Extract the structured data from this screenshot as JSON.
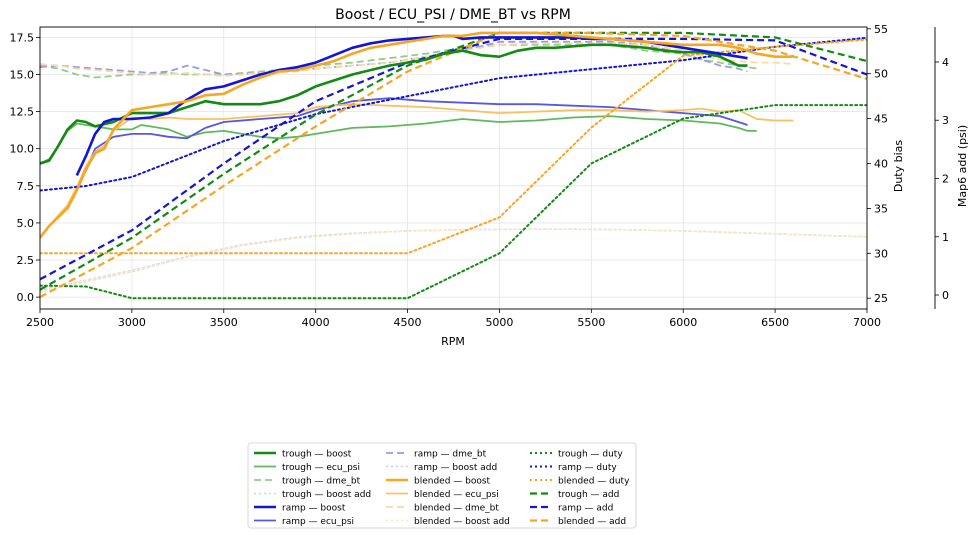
{
  "chart_data": {
    "type": "line",
    "title": "Boost / ECU_PSI / DME_BT vs RPM",
    "xlabel": "RPM",
    "ylabel_left": "",
    "ylabel_right1": "Duty bias",
    "ylabel_right2": "Map6 add (psi)",
    "xlim": [
      2500,
      7000
    ],
    "ylim_left": [
      -0.8,
      18.2
    ],
    "ylim_right1": [
      23.8,
      55.2
    ],
    "ylim_right2": [
      -0.24,
      4.6
    ],
    "xticks": [
      "2500",
      "3000",
      "3500",
      "4000",
      "4500",
      "5000",
      "5500",
      "6000",
      "6500",
      "7000"
    ],
    "yticks_left": [
      "0.0",
      "2.5",
      "5.0",
      "7.5",
      "10.0",
      "12.5",
      "15.0",
      "17.5"
    ],
    "yticks_right1": [
      "25",
      "30",
      "35",
      "40",
      "45",
      "50",
      "55"
    ],
    "yticks_right2": [
      "0",
      "1",
      "2",
      "3",
      "4"
    ],
    "grid": true,
    "legend_position": "bottom-center",
    "colors": {
      "trough": "#138a13",
      "ramp": "#1414d6",
      "blended": "#f5a623"
    },
    "series": [
      {
        "name": "trough — boost",
        "axis": "left",
        "color": "#138a13",
        "dash": "solid",
        "width": 2.6,
        "alpha": 1,
        "x": [
          2500,
          2550,
          2600,
          2650,
          2700,
          2750,
          2800,
          2900,
          3000,
          3100,
          3200,
          3300,
          3400,
          3500,
          3600,
          3700,
          3800,
          3900,
          4000,
          4200,
          4400,
          4500,
          4600,
          4700,
          4800,
          4900,
          5000,
          5100,
          5200,
          5300,
          5400,
          5500,
          5600,
          5700,
          5800,
          5900,
          6000,
          6100,
          6200,
          6300,
          6350
        ],
        "y": [
          9.0,
          9.2,
          10.2,
          11.3,
          11.9,
          11.8,
          11.5,
          11.8,
          12.4,
          12.4,
          12.4,
          12.8,
          13.2,
          13.0,
          13.0,
          13.0,
          13.2,
          13.6,
          14.2,
          15.0,
          15.6,
          15.8,
          16.0,
          16.4,
          16.6,
          16.3,
          16.2,
          16.6,
          16.8,
          16.8,
          16.9,
          17.0,
          17.0,
          16.9,
          16.8,
          16.6,
          16.5,
          16.5,
          16.2,
          15.6,
          15.6
        ]
      },
      {
        "name": "trough — ecu_psi",
        "axis": "left",
        "color": "#5fb85f",
        "dash": "solid",
        "width": 1.8,
        "alpha": 1,
        "x": [
          2500,
          2550,
          2600,
          2650,
          2700,
          2800,
          2900,
          3000,
          3050,
          3100,
          3200,
          3300,
          3400,
          3500,
          3600,
          3700,
          3800,
          3900,
          4000,
          4200,
          4400,
          4600,
          4800,
          5000,
          5200,
          5400,
          5600,
          5800,
          6000,
          6200,
          6300,
          6350,
          6400
        ],
        "y": [
          9.0,
          9.3,
          10.2,
          11.2,
          11.7,
          11.5,
          11.3,
          11.3,
          11.6,
          11.5,
          11.3,
          10.8,
          11.1,
          11.2,
          11.0,
          10.8,
          10.7,
          10.8,
          11.0,
          11.4,
          11.5,
          11.7,
          12.0,
          11.8,
          11.9,
          12.1,
          12.2,
          12.0,
          11.9,
          11.7,
          11.4,
          11.2,
          11.2
        ]
      },
      {
        "name": "trough — dme_bt",
        "axis": "left",
        "color": "#8fcc8f",
        "dash": "dashed",
        "width": 1.8,
        "alpha": 1,
        "x": [
          2500,
          2600,
          2700,
          2800,
          2900,
          3000,
          3100,
          3200,
          3300,
          3400,
          3500,
          3700,
          3900,
          4000,
          4200,
          4400,
          4600,
          4800,
          5000,
          5200,
          5400,
          5600,
          5800,
          6000,
          6100,
          6200,
          6300,
          6400
        ],
        "y": [
          15.6,
          15.4,
          15.0,
          14.8,
          14.9,
          15.0,
          15.0,
          15.1,
          15.0,
          15.0,
          15.0,
          15.2,
          15.4,
          15.6,
          15.8,
          16.1,
          16.4,
          16.8,
          17.0,
          17.0,
          17.0,
          17.0,
          16.6,
          16.4,
          16.0,
          15.8,
          15.6,
          15.4
        ]
      },
      {
        "name": "trough — boost add",
        "axis": "right2",
        "color": "#bfe3bf",
        "dash": "dotted",
        "width": 1.6,
        "alpha": 1,
        "x": [
          2500,
          2700,
          3000,
          3300,
          3600,
          3900,
          4200,
          4500,
          4800,
          5100,
          5400,
          5700,
          6000,
          6300,
          6600,
          7000
        ],
        "y": [
          0.05,
          0.2,
          0.4,
          0.65,
          0.85,
          0.98,
          1.05,
          1.1,
          1.12,
          1.13,
          1.13,
          1.12,
          1.1,
          1.07,
          1.04,
          1.0
        ]
      },
      {
        "name": "ramp — boost",
        "axis": "left",
        "color": "#1414d6",
        "dash": "solid",
        "width": 2.6,
        "alpha": 1,
        "x": [
          2700,
          2750,
          2800,
          2850,
          2900,
          3000,
          3100,
          3200,
          3300,
          3400,
          3500,
          3600,
          3700,
          3800,
          3900,
          4000,
          4100,
          4200,
          4300,
          4400,
          4500,
          4600,
          4700,
          4750,
          4800,
          4900,
          5000,
          5100,
          5200,
          5400,
          5500,
          5600,
          5800,
          6000,
          6200,
          6300,
          6350
        ],
        "y": [
          8.2,
          9.5,
          11.0,
          11.8,
          12.0,
          12.0,
          12.1,
          12.4,
          13.3,
          14.0,
          14.2,
          14.6,
          15.0,
          15.3,
          15.5,
          15.8,
          16.3,
          16.8,
          17.1,
          17.3,
          17.4,
          17.5,
          17.6,
          17.6,
          17.4,
          17.5,
          17.5,
          17.5,
          17.5,
          17.5,
          17.4,
          17.4,
          17.2,
          16.8,
          16.4,
          16.2,
          16.1
        ]
      },
      {
        "name": "ramp — ecu_psi",
        "axis": "left",
        "color": "#5757e0",
        "dash": "solid",
        "width": 1.8,
        "alpha": 1,
        "x": [
          2750,
          2800,
          2900,
          3000,
          3100,
          3200,
          3300,
          3400,
          3500,
          3700,
          3900,
          4000,
          4200,
          4400,
          4600,
          4800,
          5000,
          5200,
          5400,
          5600,
          5800,
          6000,
          6200,
          6300,
          6350
        ],
        "y": [
          8.5,
          10.0,
          10.8,
          11.0,
          11.0,
          10.8,
          10.7,
          11.4,
          11.8,
          12.0,
          12.2,
          12.6,
          13.2,
          13.4,
          13.2,
          13.1,
          13.0,
          13.0,
          12.9,
          12.8,
          12.6,
          12.4,
          12.2,
          11.8,
          11.6
        ]
      },
      {
        "name": "ramp — dme_bt",
        "axis": "left",
        "color": "#9a9aea",
        "dash": "dashed",
        "width": 1.8,
        "alpha": 1,
        "x": [
          2500,
          2600,
          2700,
          2800,
          2900,
          3000,
          3100,
          3200,
          3300,
          3400,
          3500,
          3700,
          3900,
          4000,
          4200,
          4400,
          4600,
          4800,
          5000,
          5200,
          5400,
          5600,
          5800,
          6000,
          6100,
          6200,
          6300,
          6350
        ],
        "y": [
          15.5,
          15.6,
          15.5,
          15.4,
          15.3,
          15.2,
          15.1,
          15.2,
          15.6,
          15.3,
          15.0,
          15.1,
          15.3,
          15.4,
          15.6,
          15.8,
          16.2,
          16.6,
          17.2,
          17.2,
          17.2,
          17.2,
          17.0,
          16.4,
          16.0,
          15.6,
          15.4,
          15.2
        ]
      },
      {
        "name": "ramp — boost add",
        "axis": "right2",
        "color": "#c9c9f2",
        "dash": "dotted",
        "width": 1.6,
        "alpha": 1,
        "x": [
          2500,
          2700,
          3000,
          3300,
          3600,
          3900,
          4200,
          4500,
          4800,
          5100,
          5400,
          5700,
          6000,
          6300,
          6600,
          7000
        ],
        "y": [
          0.08,
          0.22,
          0.42,
          0.66,
          0.86,
          0.99,
          1.06,
          1.1,
          1.12,
          1.13,
          1.13,
          1.12,
          1.1,
          1.07,
          1.04,
          1.0
        ]
      },
      {
        "name": "blended — boost",
        "axis": "left",
        "color": "#f5a623",
        "dash": "solid",
        "width": 2.6,
        "alpha": 1,
        "x": [
          2500,
          2550,
          2600,
          2650,
          2700,
          2750,
          2800,
          2850,
          2900,
          3000,
          3100,
          3200,
          3300,
          3400,
          3500,
          3600,
          3700,
          3800,
          3900,
          4000,
          4100,
          4200,
          4300,
          4400,
          4500,
          4600,
          4700,
          4800,
          4900,
          5000,
          5200,
          5400,
          5600,
          5800,
          6000,
          6200,
          6300,
          6400,
          6500,
          6600
        ],
        "y": [
          4.0,
          4.8,
          5.4,
          6.0,
          7.2,
          8.6,
          9.7,
          10.0,
          11.3,
          12.6,
          12.8,
          13.0,
          13.2,
          13.6,
          13.7,
          14.3,
          14.8,
          15.2,
          15.3,
          15.6,
          15.9,
          16.4,
          16.8,
          17.0,
          17.2,
          17.4,
          17.6,
          17.6,
          17.8,
          17.8,
          17.8,
          17.6,
          17.4,
          17.2,
          17.0,
          17.0,
          16.8,
          16.4,
          16.2,
          16.2
        ]
      },
      {
        "name": "blended — ecu_psi",
        "axis": "left",
        "color": "#f8c060",
        "dash": "solid",
        "width": 1.8,
        "alpha": 1,
        "x": [
          2500,
          2550,
          2600,
          2650,
          2700,
          2750,
          2800,
          2850,
          2900,
          3000,
          3100,
          3200,
          3300,
          3400,
          3500,
          3700,
          3900,
          4000,
          4200,
          4400,
          4600,
          4800,
          5000,
          5200,
          5400,
          5600,
          5800,
          6000,
          6100,
          6200,
          6300,
          6400,
          6500,
          6600
        ],
        "y": [
          4.0,
          4.8,
          5.5,
          6.2,
          7.4,
          8.8,
          9.8,
          10.2,
          11.2,
          12.1,
          12.0,
          12.1,
          12.0,
          12.0,
          12.0,
          12.2,
          12.4,
          12.8,
          13.0,
          12.9,
          12.8,
          12.6,
          12.4,
          12.5,
          12.6,
          12.6,
          12.5,
          12.6,
          12.7,
          12.5,
          12.6,
          12.0,
          11.9,
          11.9
        ]
      },
      {
        "name": "blended — dme_bt",
        "axis": "left",
        "color": "#fbd9a0",
        "dash": "dashed",
        "width": 1.8,
        "alpha": 1,
        "x": [
          2500,
          2600,
          2700,
          2800,
          2900,
          3000,
          3100,
          3200,
          3300,
          3400,
          3500,
          3700,
          3900,
          4000,
          4200,
          4400,
          4600,
          4800,
          5000,
          5200,
          5400,
          5600,
          5800,
          6000,
          6200,
          6300,
          6400,
          6500,
          6600
        ],
        "y": [
          15.7,
          15.6,
          15.4,
          15.3,
          15.2,
          15.1,
          15.0,
          15.0,
          15.1,
          15.0,
          14.9,
          15.1,
          15.2,
          15.4,
          15.6,
          15.8,
          16.2,
          16.6,
          17.0,
          17.1,
          17.1,
          17.1,
          17.0,
          16.6,
          16.0,
          15.9,
          15.8,
          15.8,
          15.7
        ]
      },
      {
        "name": "blended — boost add",
        "axis": "right2",
        "color": "#fde7c2",
        "dash": "dotted",
        "width": 1.6,
        "alpha": 1,
        "x": [
          2500,
          2700,
          3000,
          3300,
          3600,
          3900,
          4200,
          4500,
          4800,
          5100,
          5400,
          5700,
          6000,
          6300,
          6600,
          7000
        ],
        "y": [
          0.06,
          0.21,
          0.41,
          0.65,
          0.85,
          0.98,
          1.05,
          1.1,
          1.12,
          1.13,
          1.13,
          1.12,
          1.1,
          1.07,
          1.04,
          1.0
        ]
      },
      {
        "name": "trough — duty",
        "axis": "right1",
        "color": "#138a13",
        "dash": "dotted",
        "width": 2.0,
        "alpha": 1,
        "x": [
          2500,
          2750,
          3000,
          3500,
          4000,
          4500,
          5000,
          5500,
          6000,
          6500,
          7000
        ],
        "y": [
          26.4,
          26.3,
          25.0,
          25.0,
          25.0,
          25.0,
          30.0,
          40.0,
          45.0,
          46.5,
          46.5
        ]
      },
      {
        "name": "ramp — duty",
        "axis": "right1",
        "color": "#1414d6",
        "dash": "dotted",
        "width": 2.0,
        "alpha": 1,
        "x": [
          2500,
          2750,
          3000,
          3500,
          4000,
          4500,
          5000,
          5500,
          6000,
          6500,
          7000
        ],
        "y": [
          37.0,
          37.5,
          38.5,
          42.5,
          45.5,
          47.5,
          49.5,
          50.5,
          51.5,
          53.0,
          54.0
        ]
      },
      {
        "name": "blended — duty",
        "axis": "right1",
        "color": "#f5a623",
        "dash": "dotted",
        "width": 2.0,
        "alpha": 1,
        "x": [
          2500,
          3000,
          3500,
          4000,
          4500,
          5000,
          5500,
          6000,
          6500,
          7000
        ],
        "y": [
          30.0,
          30.0,
          30.0,
          30.0,
          30.0,
          34.0,
          44.0,
          52.0,
          53.0,
          53.8
        ]
      },
      {
        "name": "trough — add",
        "axis": "left",
        "color": "#138a13",
        "dash": "dashed",
        "width": 2.2,
        "alpha": 1,
        "x": [
          2500,
          3000,
          3500,
          4000,
          4500,
          5000,
          5500,
          6000,
          6500,
          7000
        ],
        "y": [
          0.5,
          4.0,
          8.3,
          12.3,
          15.6,
          17.8,
          17.8,
          17.8,
          17.5,
          15.9
        ]
      },
      {
        "name": "ramp — add",
        "axis": "left",
        "color": "#1414d6",
        "dash": "dashed",
        "width": 2.2,
        "alpha": 1,
        "x": [
          2500,
          3000,
          3500,
          4000,
          4500,
          5000,
          5500,
          6000,
          6500,
          7000
        ],
        "y": [
          1.2,
          4.5,
          9.0,
          13.2,
          15.8,
          17.4,
          17.4,
          17.4,
          17.3,
          15.0
        ]
      },
      {
        "name": "blended — add",
        "axis": "left",
        "color": "#f5a623",
        "dash": "dashed",
        "width": 2.2,
        "alpha": 1,
        "x": [
          2500,
          3000,
          3500,
          4000,
          4500,
          5000,
          5500,
          6000,
          6500,
          7000
        ],
        "y": [
          0.0,
          3.3,
          7.5,
          11.5,
          15.2,
          17.8,
          17.8,
          17.6,
          16.6,
          14.7
        ]
      }
    ],
    "legend_columns": [
      [
        "trough — boost",
        "trough — ecu_psi",
        "trough — dme_bt",
        "trough — boost add",
        "ramp — boost",
        "ramp — ecu_psi"
      ],
      [
        "ramp — dme_bt",
        "ramp — boost add",
        "blended — boost",
        "blended — ecu_psi",
        "blended — dme_bt",
        "blended — boost add"
      ],
      [
        "trough — duty",
        "ramp — duty",
        "blended — duty",
        "trough — add",
        "ramp — add",
        "blended — add"
      ]
    ]
  }
}
